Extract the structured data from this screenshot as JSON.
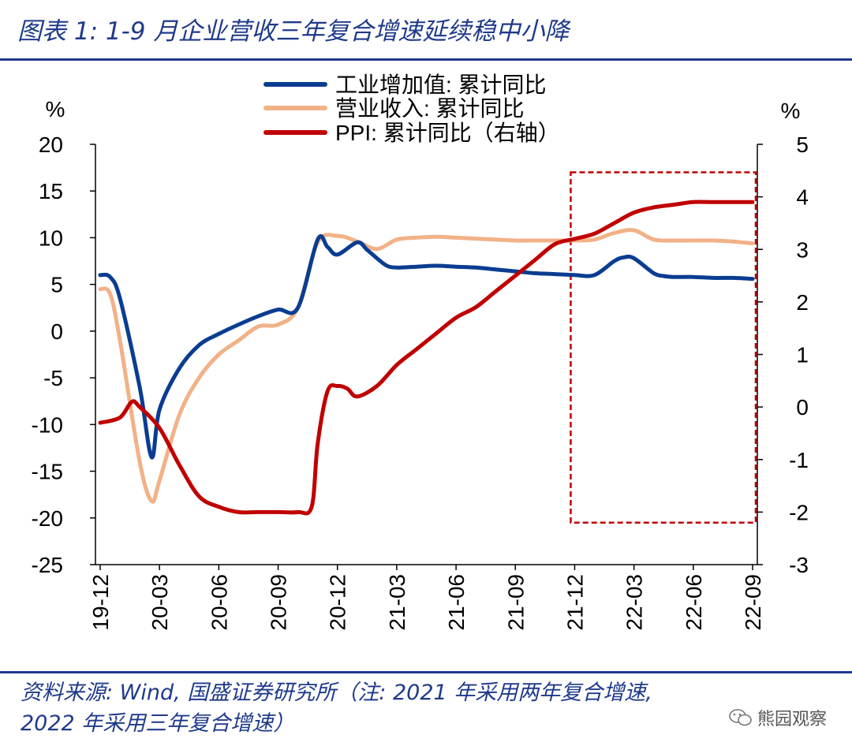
{
  "title": "图表 1:  1-9 月企业营收三年复合增速延续稳中小降",
  "footer": {
    "line1": "资料来源: Wind, 国盛证券研究所（注: 2021 年采用两年复合增速,",
    "line2": "2022 年采用三年复合增速）"
  },
  "watermark": "熊园观察",
  "colors": {
    "industrial": "#0a3d91",
    "revenue": "#f2b187",
    "ppi": "#c00000",
    "highlight_box": "#c00000",
    "title": "#1f3a8a"
  },
  "chart_data": {
    "type": "line",
    "left_unit": "%",
    "right_unit": "%",
    "left_ylim": [
      -25,
      20
    ],
    "right_ylim": [
      -3,
      5
    ],
    "left_ticks": [
      "20",
      "15",
      "10",
      "5",
      "0",
      "-5",
      "-10",
      "-15",
      "-20",
      "-25"
    ],
    "right_ticks": [
      "5",
      "4",
      "3",
      "2",
      "1",
      "0",
      "-1",
      "-2",
      "-3"
    ],
    "x_labels": [
      "19-12",
      "20-03",
      "20-06",
      "20-09",
      "20-12",
      "21-03",
      "21-06",
      "21-09",
      "21-12",
      "22-03",
      "22-06",
      "22-09"
    ],
    "legend": [
      "工业增加值: 累计同比",
      "营业收入: 累计同比",
      "PPI: 累计同比（右轴）"
    ],
    "highlight_range": {
      "x_from": 24,
      "x_to": 33,
      "y_from": 17,
      "y_to": -20.5
    },
    "series": [
      {
        "name": "工业增加值: 累计同比",
        "axis": "left",
        "x": [
          0,
          0.5,
          1,
          2,
          2.6,
          3,
          4,
          5,
          6,
          7,
          8,
          9,
          10,
          11,
          11.5,
          12,
          13,
          13.5,
          14,
          14.5,
          15,
          16,
          17,
          18,
          19,
          20,
          21,
          22,
          23,
          24,
          25,
          26,
          26.5,
          27,
          28,
          28.5,
          29,
          30,
          31,
          32,
          33
        ],
        "values": [
          6.0,
          5.8,
          3.5,
          -6.0,
          -13.5,
          -8.4,
          -4.0,
          -1.5,
          -0.3,
          0.7,
          1.6,
          2.3,
          2.5,
          9.8,
          9.0,
          8.2,
          9.5,
          8.7,
          7.8,
          7.0,
          6.8,
          6.9,
          7.0,
          6.9,
          6.8,
          6.6,
          6.4,
          6.2,
          6.1,
          6.0,
          6.0,
          7.5,
          7.9,
          7.8,
          6.2,
          5.9,
          5.8,
          5.8,
          5.7,
          5.7,
          5.6
        ]
      },
      {
        "name": "营业收入: 累计同比",
        "axis": "left",
        "x": [
          0,
          0.5,
          1,
          2,
          2.6,
          3,
          4,
          5,
          6,
          7,
          8,
          9,
          10,
          11,
          12,
          13,
          14,
          15,
          16,
          17,
          18,
          19,
          20,
          21,
          22,
          23,
          24,
          25,
          26,
          27,
          28,
          29,
          30,
          31,
          32,
          33
        ],
        "values": [
          4.5,
          4.0,
          -1.0,
          -14.0,
          -18.2,
          -16.0,
          -9.0,
          -5.0,
          -2.5,
          -1.0,
          0.5,
          0.7,
          2.5,
          9.5,
          10.2,
          9.6,
          8.8,
          9.8,
          10.0,
          10.1,
          10.0,
          9.9,
          9.8,
          9.7,
          9.7,
          9.7,
          9.7,
          9.8,
          10.5,
          10.8,
          9.8,
          9.7,
          9.7,
          9.7,
          9.6,
          9.4
        ]
      },
      {
        "name": "PPI: 累计同比（右轴）",
        "axis": "right",
        "x": [
          0,
          1,
          1.6,
          2,
          3,
          4,
          5,
          6,
          7,
          8,
          9,
          10,
          10.7,
          11,
          11.5,
          12,
          12.5,
          13,
          14,
          15,
          16,
          17,
          18,
          19,
          20,
          21,
          22,
          23,
          24,
          25,
          26,
          27,
          28,
          29,
          30,
          31,
          32,
          33
        ],
        "values": [
          -0.3,
          -0.2,
          0.1,
          0.0,
          -0.4,
          -1.1,
          -1.7,
          -1.9,
          -2.0,
          -2.0,
          -2.0,
          -2.0,
          -1.9,
          -0.7,
          0.3,
          0.4,
          0.35,
          0.2,
          0.4,
          0.8,
          1.1,
          1.4,
          1.7,
          1.9,
          2.2,
          2.5,
          2.8,
          3.1,
          3.2,
          3.3,
          3.5,
          3.7,
          3.8,
          3.85,
          3.9,
          3.9,
          3.9,
          3.9
        ]
      }
    ]
  }
}
